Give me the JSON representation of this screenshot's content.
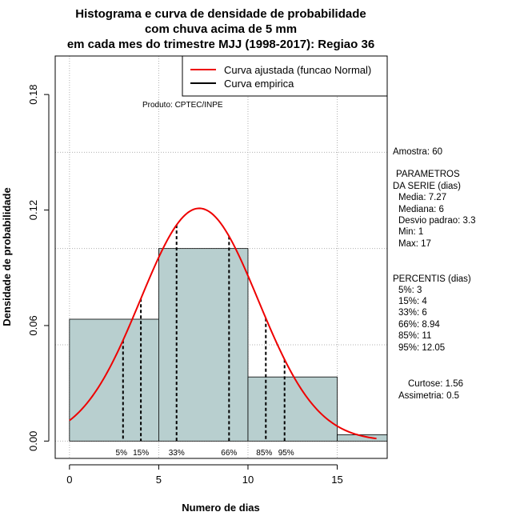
{
  "chart_data": {
    "type": "histogram",
    "title_lines": [
      "Histograma e curva de densidade de probabilidade",
      "com chuva acima de 5 mm",
      "em cada mes do trimestre MJJ (1998-2017): Regiao 36"
    ],
    "xlabel": "Numero de dias",
    "ylabel": "Densidade de probabilidade",
    "xlim": [
      -0.8,
      17.8
    ],
    "ylim": [
      -0.009,
      0.2
    ],
    "x_ticks": [
      0,
      5,
      10,
      15
    ],
    "y_ticks": [
      0.0,
      0.06,
      0.12,
      0.18
    ],
    "y_tick_labels": [
      "0.00",
      "0.06",
      "0.12",
      "0.18"
    ],
    "grid_x": [
      0,
      5,
      10,
      15
    ],
    "grid_y": [
      0.0,
      0.05,
      0.1,
      0.15,
      0.2
    ],
    "bins": [
      {
        "start": 0,
        "end": 5,
        "density": 0.0633
      },
      {
        "start": 5,
        "end": 10,
        "density": 0.1
      },
      {
        "start": 10,
        "end": 15,
        "density": 0.0333
      },
      {
        "start": 15,
        "end": 20,
        "density": 0.0033
      }
    ],
    "normal_fit": {
      "mean": 7.27,
      "sd": 3.3,
      "x_from": 0,
      "x_to": 17.2
    },
    "percentile_lines": [
      {
        "label": "5%",
        "x": 3
      },
      {
        "label": "15%",
        "x": 4
      },
      {
        "label": "33%",
        "x": 6
      },
      {
        "label": "66%",
        "x": 8.94
      },
      {
        "label": "85%",
        "x": 11
      },
      {
        "label": "95%",
        "x": 12.05
      }
    ],
    "legend": {
      "position": "top-right",
      "entries": [
        {
          "label": "Curva ajustada (funcao Normal)",
          "color": "#ee0000"
        },
        {
          "label": "Curva empirica",
          "color": "#000000"
        }
      ]
    },
    "annotation": "Produto: CPTEC/INPE",
    "colors": {
      "bar_fill": "#b8cfcf",
      "curve": "#ee0000",
      "grid": "#b0b0b0"
    }
  },
  "side_panel": {
    "amostra": "Amostra: 60",
    "param_title_1": "PARAMETROS",
    "param_title_2": "DA SERIE (dias)",
    "media": "Media: 7.27",
    "mediana": "Mediana: 6",
    "desvio": "Desvio padrao: 3.3",
    "min": "Min: 1",
    "max": "Max: 17",
    "percentis_title": "PERCENTIS (dias)",
    "p5": "5%: 3",
    "p15": "15%: 4",
    "p33": "33%: 6",
    "p66": "66%: 8.94",
    "p85": "85%: 11",
    "p95": "95%: 12.05",
    "curtose": "Curtose: 1.56",
    "assimetria": "Assimetria: 0.5"
  }
}
